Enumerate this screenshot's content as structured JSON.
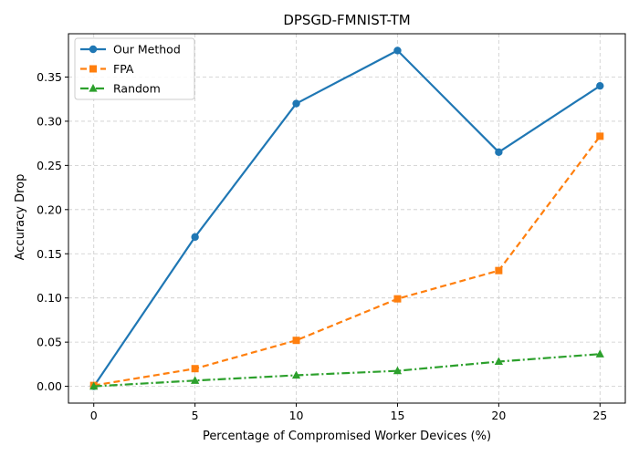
{
  "chart_data": {
    "type": "line",
    "title": "DPSGD-FMNIST-TM",
    "xlabel": "Percentage of Compromised Worker Devices (%)",
    "ylabel": "Accuracy Drop",
    "x": [
      0,
      5,
      10,
      15,
      20,
      25
    ],
    "xlim": [
      -1.25,
      26.25
    ],
    "ylim": [
      -0.019,
      0.399
    ],
    "xticks": [
      0,
      5,
      10,
      15,
      20,
      25
    ],
    "xtick_labels": [
      "0",
      "5",
      "10",
      "15",
      "20",
      "25"
    ],
    "yticks": [
      0.0,
      0.05,
      0.1,
      0.15,
      0.2,
      0.25,
      0.3,
      0.35
    ],
    "ytick_labels": [
      "0.00",
      "0.05",
      "0.10",
      "0.15",
      "0.20",
      "0.25",
      "0.30",
      "0.35"
    ],
    "grid": true,
    "legend_position": "top-left",
    "series": [
      {
        "name": "Our Method",
        "values": [
          0.0,
          0.169,
          0.32,
          0.38,
          0.265,
          0.34
        ],
        "color": "#1f77b4",
        "marker": "circle",
        "linestyle": "solid"
      },
      {
        "name": "FPA",
        "values": [
          0.001,
          0.02,
          0.052,
          0.099,
          0.131,
          0.283
        ],
        "color": "#ff7f0e",
        "marker": "square",
        "linestyle": "dashed"
      },
      {
        "name": "Random",
        "values": [
          0.0,
          0.0065,
          0.0125,
          0.0175,
          0.028,
          0.0365
        ],
        "color": "#2ca02c",
        "marker": "triangle",
        "linestyle": "dashdot"
      }
    ]
  }
}
